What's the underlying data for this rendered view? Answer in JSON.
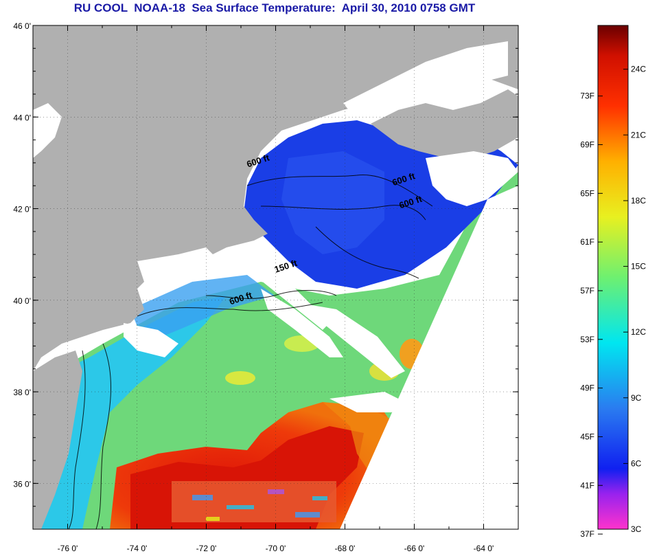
{
  "title": "RU COOL  NOAA-18  Sea Surface Temperature:  April 30, 2010 0758 GMT",
  "map": {
    "lon_range": [
      -77,
      -63
    ],
    "lat_range": [
      35,
      46
    ],
    "lon_ticks": [
      "-76 0'",
      "-74 0'",
      "-72 0'",
      "-70 0'",
      "-68 0'",
      "-66 0'",
      "-64 0'"
    ],
    "lat_ticks": [
      "46 0'",
      "44 0'",
      "42 0'",
      "40 0'",
      "38 0'",
      "36 0'"
    ],
    "contour_labels": [
      {
        "text": "600 ft",
        "lon": -70.8,
        "lat": 42.9
      },
      {
        "text": "600 ft",
        "lon": -66.6,
        "lat": 42.5
      },
      {
        "text": "600 ft",
        "lon": -66.4,
        "lat": 42.0
      },
      {
        "text": "150 ft",
        "lon": -70.0,
        "lat": 40.6
      },
      {
        "text": "600 ft",
        "lon": -71.3,
        "lat": 39.9
      }
    ],
    "colors": {
      "land": "#b0b0b0",
      "cloud": "#ffffff",
      "gulf_of_maine": "#1a3ee6",
      "slope_water": "#7fdc6a",
      "gulf_stream": "#e8200a"
    }
  },
  "colorbar": {
    "fahrenheit_labels": [
      "73F",
      "69F",
      "65F",
      "61F",
      "57F",
      "53F",
      "49F",
      "45F",
      "41F",
      "37F"
    ],
    "celsius_labels": [
      "24C",
      "21C",
      "18C",
      "15C",
      "12C",
      "9C",
      "6C",
      "3C"
    ],
    "range_c": [
      3,
      26
    ]
  }
}
